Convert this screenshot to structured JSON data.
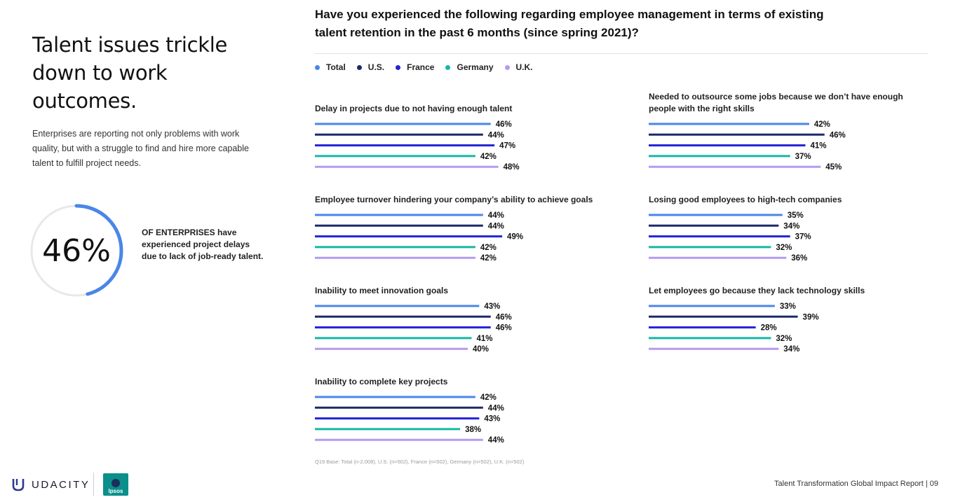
{
  "left": {
    "headline": "Talent issues trickle down to work outcomes.",
    "description": "Enterprises are reporting not only problems with work quality, but with a struggle to find and hire more capable talent to fulfill project needs.",
    "stat_value": "46%",
    "stat_fraction": 0.46,
    "stat_strong": "OF ENTERPRISES",
    "stat_rest": " have experienced project delays due to lack of job-ready talent."
  },
  "chart_data": {
    "type": "bar",
    "orientation": "horizontal",
    "title": "Have you experienced the following regarding employee management in terms of existing talent retention in the past 6 months (since spring 2021)?",
    "series_names": [
      "Total",
      "U.S.",
      "France",
      "Germany",
      "U.K."
    ],
    "colors": [
      "#4a86e8",
      "#1c2a6b",
      "#2323d8",
      "#16b8a4",
      "#b59af2"
    ],
    "groups": [
      {
        "label": "Delay in projects due to not having enough talent",
        "values": [
          46,
          44,
          47,
          42,
          48
        ]
      },
      {
        "label": "Employee turnover hindering your company’s ability to achieve goals",
        "values": [
          44,
          44,
          49,
          42,
          42
        ]
      },
      {
        "label": "Inability to meet innovation goals",
        "values": [
          43,
          46,
          46,
          41,
          40
        ]
      },
      {
        "label": "Inability to complete key projects",
        "values": [
          42,
          44,
          43,
          38,
          44
        ]
      },
      {
        "label": "Needed to outsource some jobs because we don’t have enough people with the right skills",
        "values": [
          42,
          46,
          41,
          37,
          45
        ]
      },
      {
        "label": "Losing good employees to high-tech companies",
        "values": [
          35,
          34,
          37,
          32,
          36
        ]
      },
      {
        "label": "Let employees go because they lack technology skills",
        "values": [
          33,
          39,
          28,
          32,
          34
        ]
      }
    ],
    "value_suffix": "%"
  },
  "footnote": "Q19 Base: Total (n-2,008), U.S. (n=502), France (n=502), Germany (n=502), U.K. (n=502)",
  "footer": {
    "udacity": "UDACITY",
    "ipsos": "Ipsos",
    "report": "Talent Transformation Global Impact Report  |  09"
  }
}
